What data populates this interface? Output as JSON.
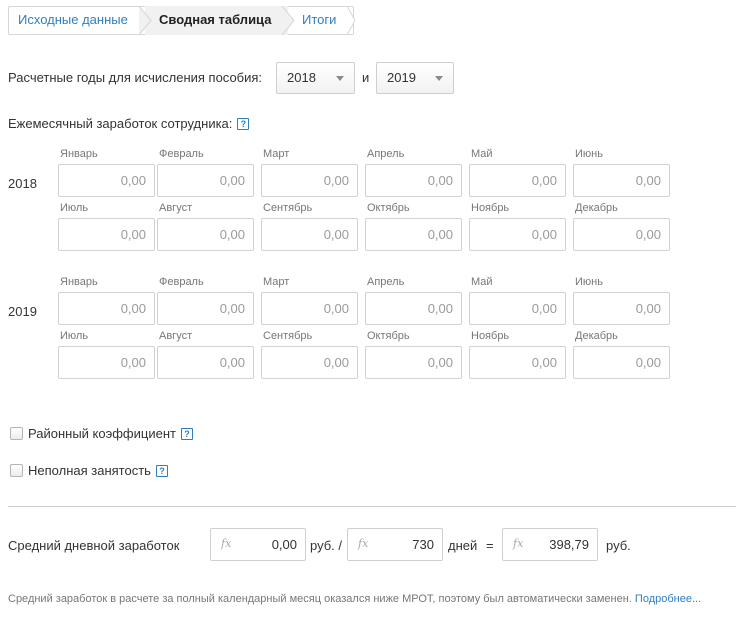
{
  "steps": [
    "Исходные данные",
    "Сводная таблица",
    "Итоги"
  ],
  "years_row": {
    "label": "Расчетные годы для исчисления пособия:",
    "year1": "2018",
    "connector": "и",
    "year2": "2019"
  },
  "earnings_label": "Ежемесячный заработок сотрудника:",
  "help_glyph": "?",
  "years": [
    {
      "year": "2018",
      "months": [
        {
          "name": "Январь",
          "value": "0,00"
        },
        {
          "name": "Февраль",
          "value": "0,00"
        },
        {
          "name": "Март",
          "value": "0,00"
        },
        {
          "name": "Апрель",
          "value": "0,00"
        },
        {
          "name": "Май",
          "value": "0,00"
        },
        {
          "name": "Июнь",
          "value": "0,00"
        },
        {
          "name": "Июль",
          "value": "0,00"
        },
        {
          "name": "Август",
          "value": "0,00"
        },
        {
          "name": "Сентябрь",
          "value": "0,00"
        },
        {
          "name": "Октябрь",
          "value": "0,00"
        },
        {
          "name": "Ноябрь",
          "value": "0,00"
        },
        {
          "name": "Декабрь",
          "value": "0,00"
        }
      ]
    },
    {
      "year": "2019",
      "months": [
        {
          "name": "Январь",
          "value": "0,00"
        },
        {
          "name": "Февраль",
          "value": "0,00"
        },
        {
          "name": "Март",
          "value": "0,00"
        },
        {
          "name": "Апрель",
          "value": "0,00"
        },
        {
          "name": "Май",
          "value": "0,00"
        },
        {
          "name": "Июнь",
          "value": "0,00"
        },
        {
          "name": "Июль",
          "value": "0,00"
        },
        {
          "name": "Август",
          "value": "0,00"
        },
        {
          "name": "Сентябрь",
          "value": "0,00"
        },
        {
          "name": "Октябрь",
          "value": "0,00"
        },
        {
          "name": "Ноябрь",
          "value": "0,00"
        },
        {
          "name": "Декабрь",
          "value": "0,00"
        }
      ]
    }
  ],
  "options": {
    "regional_coefficient": "Районный коэффициент",
    "part_time": "Неполная занятость"
  },
  "average": {
    "label": "Средний дневной заработок",
    "fx": "fx",
    "amount": "0,00",
    "unit1": "руб. /",
    "days": "730",
    "unit2": "дней",
    "equals": "=",
    "result": "398,79",
    "unit3": "руб."
  },
  "note": {
    "text": "Средний заработок в расчете за полный календарный месяц оказался ниже МРОТ, поэтому был автоматически заменен.",
    "link": "Подробнее..."
  }
}
